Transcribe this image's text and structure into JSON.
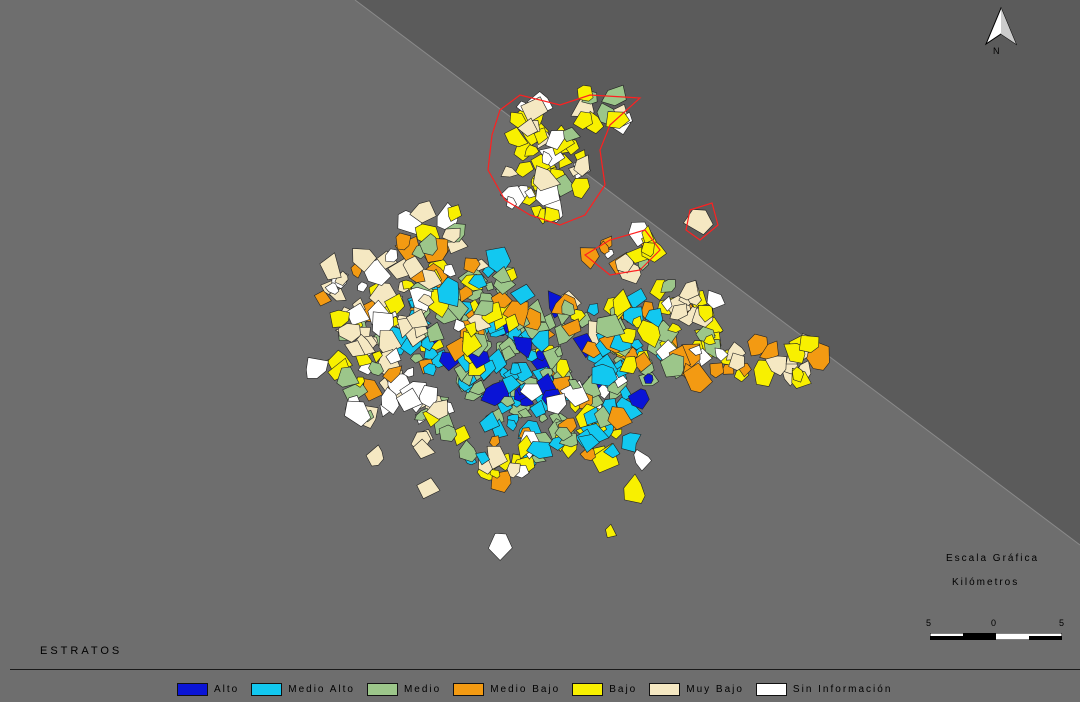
{
  "map": {
    "north_label": "N",
    "legend_title": "ESTRATOS",
    "scale": {
      "title": "Escala Gráfica",
      "units": "Kilómetros",
      "ticks": [
        "5",
        "0",
        "5"
      ]
    },
    "legend": [
      {
        "label": "Alto",
        "color": "#0a14d6"
      },
      {
        "label": "Medio Alto",
        "color": "#12c8f0"
      },
      {
        "label": "Medio",
        "color": "#9cc68a"
      },
      {
        "label": "Medio Bajo",
        "color": "#f39a12"
      },
      {
        "label": "Bajo",
        "color": "#f8f000"
      },
      {
        "label": "Muy Bajo",
        "color": "#f5e8c2"
      },
      {
        "label": "Sin Información",
        "color": "#ffffff"
      }
    ],
    "boundary_color": "#ff2020",
    "background_colors": {
      "left": "#6e6e6e",
      "right": "#5a5a5a"
    }
  }
}
